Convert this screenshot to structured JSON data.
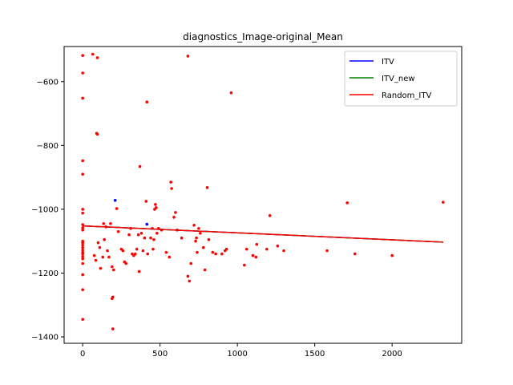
{
  "chart_data": {
    "type": "scatter",
    "title": "diagnostics_Image-original_Mean",
    "xlabel": "",
    "ylabel": "",
    "xlim": [
      -120,
      2450
    ],
    "ylim": [
      -1420,
      -490
    ],
    "x_ticks": [
      0,
      500,
      1000,
      1500,
      2000
    ],
    "y_ticks": [
      -1400,
      -1200,
      -1000,
      -800,
      -600
    ],
    "x_tick_labels": [
      "0",
      "500",
      "1000",
      "1500",
      "2000"
    ],
    "y_tick_labels": [
      "−1400",
      "−1200",
      "−1000",
      "−800",
      "−600"
    ],
    "legend_position": "top-right",
    "grid": false,
    "series": [
      {
        "name": "ITV",
        "color": "#0000ff",
        "points": [
          [
            210,
            -972
          ],
          [
            415,
            -1047
          ]
        ],
        "trend": [
          [
            0,
            -1052
          ],
          [
            2330,
            -1103
          ]
        ]
      },
      {
        "name": "ITV_new",
        "color": "#008000",
        "points": [],
        "trend": [
          [
            0,
            -1052
          ],
          [
            2330,
            -1103
          ]
        ]
      },
      {
        "name": "Random_ITV",
        "color": "#ff0000",
        "points": [
          [
            0,
            -518
          ],
          [
            0,
            -573
          ],
          [
            0,
            -652
          ],
          [
            0,
            -848
          ],
          [
            0,
            -890
          ],
          [
            0,
            -1000
          ],
          [
            0,
            -1012
          ],
          [
            0,
            -1048
          ],
          [
            0,
            -1058
          ],
          [
            0,
            -1065
          ],
          [
            0,
            -1100
          ],
          [
            0,
            -1105
          ],
          [
            0,
            -1112
          ],
          [
            0,
            -1120
          ],
          [
            0,
            -1128
          ],
          [
            0,
            -1135
          ],
          [
            0,
            -1140
          ],
          [
            0,
            -1148
          ],
          [
            0,
            -1155
          ],
          [
            0,
            -1170
          ],
          [
            0,
            -1205
          ],
          [
            0,
            -1252
          ],
          [
            0,
            -1345
          ],
          [
            65,
            -514
          ],
          [
            95,
            -525
          ],
          [
            90,
            -762
          ],
          [
            95,
            -765
          ],
          [
            75,
            -1145
          ],
          [
            85,
            -1160
          ],
          [
            110,
            -1120
          ],
          [
            100,
            -1105
          ],
          [
            115,
            -1185
          ],
          [
            135,
            -1045
          ],
          [
            150,
            -1055
          ],
          [
            140,
            -1095
          ],
          [
            160,
            -1130
          ],
          [
            170,
            -1150
          ],
          [
            130,
            -1150
          ],
          [
            180,
            -1045
          ],
          [
            190,
            -1180
          ],
          [
            195,
            -1275
          ],
          [
            190,
            -1280
          ],
          [
            200,
            -1190
          ],
          [
            195,
            -1375
          ],
          [
            220,
            -998
          ],
          [
            230,
            -1070
          ],
          [
            250,
            -1125
          ],
          [
            260,
            -1130
          ],
          [
            270,
            -1165
          ],
          [
            280,
            -1170
          ],
          [
            300,
            -1080
          ],
          [
            310,
            -1060
          ],
          [
            320,
            -1140
          ],
          [
            330,
            -1145
          ],
          [
            340,
            -1140
          ],
          [
            350,
            -1125
          ],
          [
            360,
            -1080
          ],
          [
            365,
            -1195
          ],
          [
            370,
            -866
          ],
          [
            380,
            -1075
          ],
          [
            390,
            -1130
          ],
          [
            400,
            -1090
          ],
          [
            410,
            -975
          ],
          [
            415,
            -664
          ],
          [
            420,
            -1140
          ],
          [
            440,
            -1090
          ],
          [
            450,
            -1060
          ],
          [
            455,
            -1125
          ],
          [
            460,
            -1095
          ],
          [
            465,
            -1000
          ],
          [
            470,
            -985
          ],
          [
            475,
            -995
          ],
          [
            480,
            -1075
          ],
          [
            490,
            -1060
          ],
          [
            510,
            -1065
          ],
          [
            540,
            -1135
          ],
          [
            560,
            -1150
          ],
          [
            570,
            -915
          ],
          [
            575,
            -935
          ],
          [
            590,
            -1025
          ],
          [
            600,
            -1010
          ],
          [
            610,
            -1065
          ],
          [
            640,
            -1090
          ],
          [
            680,
            -520
          ],
          [
            680,
            -1210
          ],
          [
            690,
            -1225
          ],
          [
            700,
            -1170
          ],
          [
            720,
            -1050
          ],
          [
            730,
            -1100
          ],
          [
            735,
            -1090
          ],
          [
            740,
            -1135
          ],
          [
            750,
            -1060
          ],
          [
            760,
            -1075
          ],
          [
            780,
            -1120
          ],
          [
            790,
            -1190
          ],
          [
            805,
            -932
          ],
          [
            815,
            -1095
          ],
          [
            840,
            -1135
          ],
          [
            860,
            -1140
          ],
          [
            900,
            -1140
          ],
          [
            920,
            -1130
          ],
          [
            930,
            -1125
          ],
          [
            960,
            -635
          ],
          [
            1045,
            -1175
          ],
          [
            1060,
            -1125
          ],
          [
            1100,
            -1145
          ],
          [
            1120,
            -1150
          ],
          [
            1125,
            -1110
          ],
          [
            1190,
            -1125
          ],
          [
            1210,
            -1020
          ],
          [
            1260,
            -1115
          ],
          [
            1300,
            -1130
          ],
          [
            1580,
            -1130
          ],
          [
            1710,
            -980
          ],
          [
            1760,
            -1140
          ],
          [
            2000,
            -1145
          ],
          [
            2330,
            -978
          ]
        ],
        "trend": [
          [
            0,
            -1052
          ],
          [
            2330,
            -1103
          ]
        ]
      }
    ]
  }
}
